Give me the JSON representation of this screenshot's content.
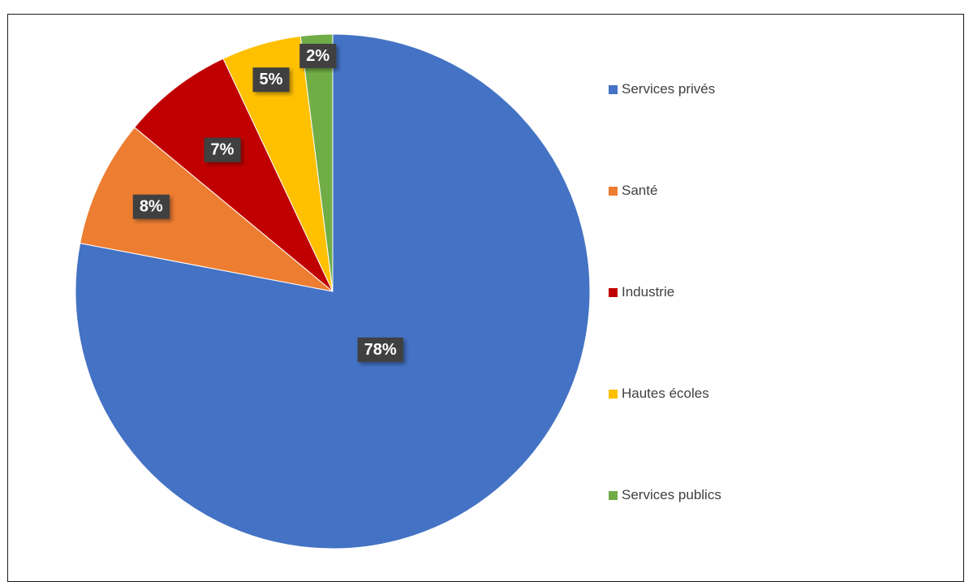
{
  "chart_data": {
    "type": "pie",
    "title": "",
    "categories": [
      "Services privés",
      "Santé",
      "Industrie",
      "Hautes écoles",
      "Services publics"
    ],
    "values": [
      78,
      8,
      7,
      5,
      2
    ],
    "value_labels": [
      "78%",
      "8%",
      "7%",
      "5%",
      "2%"
    ],
    "colors": [
      "#4472C4",
      "#ED7D31",
      "#C00000",
      "#FFC000",
      "#70AD47"
    ],
    "start_angle": "12 o'clock",
    "direction": "clockwise",
    "legend_position": "right",
    "label_style": "white bold text on dark boxes"
  }
}
